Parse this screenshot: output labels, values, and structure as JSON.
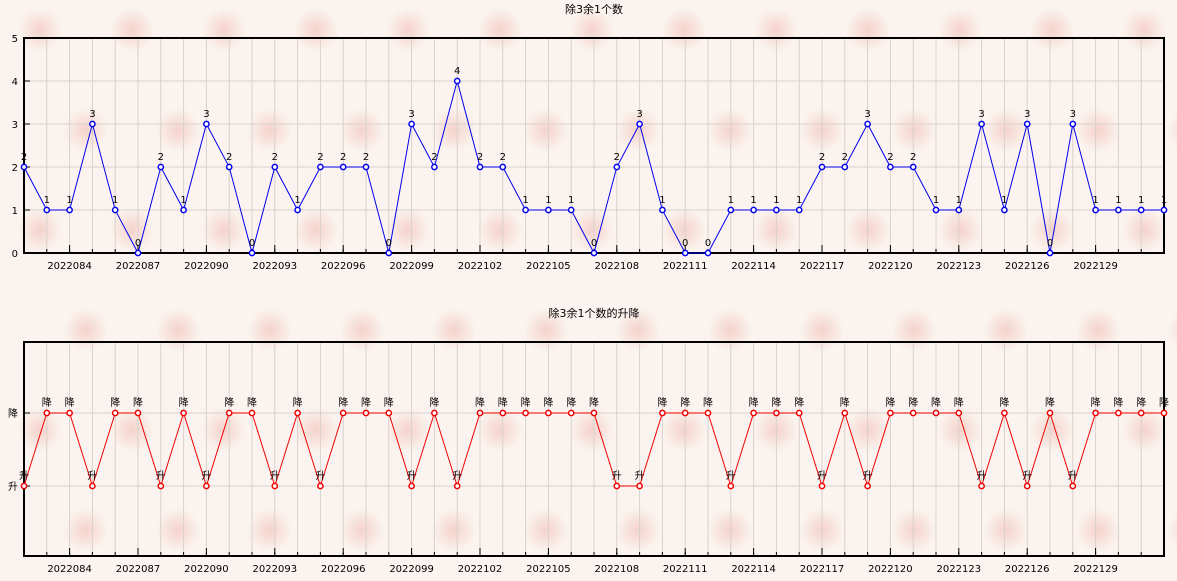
{
  "chart_data": [
    {
      "type": "line",
      "title": "除3余1个数",
      "xlabel": "",
      "ylabel": "",
      "x": [
        "2022082",
        "2022083",
        "2022084",
        "2022085",
        "2022086",
        "2022087",
        "2022088",
        "2022089",
        "2022090",
        "2022091",
        "2022092",
        "2022093",
        "2022094",
        "2022095",
        "2022096",
        "2022097",
        "2022098",
        "2022099",
        "2022100",
        "2022101",
        "2022102",
        "2022103",
        "2022104",
        "2022105",
        "2022106",
        "2022107",
        "2022108",
        "2022109",
        "2022110",
        "2022111",
        "2022112",
        "2022113",
        "2022114",
        "2022115",
        "2022116",
        "2022117",
        "2022118",
        "2022119",
        "2022120",
        "2022121",
        "2022122",
        "2022123",
        "2022124",
        "2022125",
        "2022126",
        "2022127",
        "2022128",
        "2022129",
        "2022130",
        "2022131",
        "2022132"
      ],
      "x_tick_labels": [
        "2022084",
        "2022087",
        "2022090",
        "2022093",
        "2022096",
        "2022099",
        "2022102",
        "2022105",
        "2022108",
        "2022111",
        "2022114",
        "2022117",
        "2022120",
        "2022123",
        "2022126",
        "2022129"
      ],
      "y_ticks": [
        "0",
        "1",
        "2",
        "3",
        "4",
        "5"
      ],
      "ylim": [
        0,
        5
      ],
      "grid": true,
      "series": [
        {
          "color": "#0000ee",
          "values": [
            2,
            1,
            1,
            3,
            1,
            0,
            2,
            1,
            3,
            2,
            0,
            2,
            1,
            2,
            2,
            2,
            0,
            3,
            2,
            4,
            2,
            2,
            1,
            1,
            1,
            0,
            2,
            3,
            1,
            0,
            0,
            1,
            1,
            1,
            1,
            2,
            2,
            3,
            2,
            2,
            1,
            1,
            3,
            1,
            3,
            0,
            3,
            1,
            1,
            1,
            1
          ]
        }
      ]
    },
    {
      "type": "line",
      "title": "除3余1个数的升降",
      "xlabel": "",
      "ylabel": "",
      "x": [
        "2022082",
        "2022083",
        "2022084",
        "2022085",
        "2022086",
        "2022087",
        "2022088",
        "2022089",
        "2022090",
        "2022091",
        "2022092",
        "2022093",
        "2022094",
        "2022095",
        "2022096",
        "2022097",
        "2022098",
        "2022099",
        "2022100",
        "2022101",
        "2022102",
        "2022103",
        "2022104",
        "2022105",
        "2022106",
        "2022107",
        "2022108",
        "2022109",
        "2022110",
        "2022111",
        "2022112",
        "2022113",
        "2022114",
        "2022115",
        "2022116",
        "2022117",
        "2022118",
        "2022119",
        "2022120",
        "2022121",
        "2022122",
        "2022123",
        "2022124",
        "2022125",
        "2022126",
        "2022127",
        "2022128",
        "2022129",
        "2022130",
        "2022131",
        "2022132"
      ],
      "x_tick_labels": [
        "2022084",
        "2022087",
        "2022090",
        "2022093",
        "2022096",
        "2022099",
        "2022102",
        "2022105",
        "2022108",
        "2022111",
        "2022114",
        "2022117",
        "2022120",
        "2022123",
        "2022126",
        "2022129"
      ],
      "y_ticks": [
        "升",
        "降"
      ],
      "grid": true,
      "series": [
        {
          "color": "#ee0000",
          "values": [
            "升",
            "降",
            "降",
            "升",
            "降",
            "降",
            "升",
            "降",
            "升",
            "降",
            "降",
            "升",
            "降",
            "升",
            "降",
            "降",
            "降",
            "升",
            "降",
            "升",
            "降",
            "降",
            "降",
            "降",
            "降",
            "降",
            "升",
            "升",
            "降",
            "降",
            "降",
            "升",
            "降",
            "降",
            "降",
            "升",
            "降",
            "升",
            "降",
            "降",
            "降",
            "降",
            "升",
            "降",
            "升",
            "降",
            "升",
            "降",
            "降",
            "降",
            "降"
          ]
        }
      ]
    }
  ]
}
